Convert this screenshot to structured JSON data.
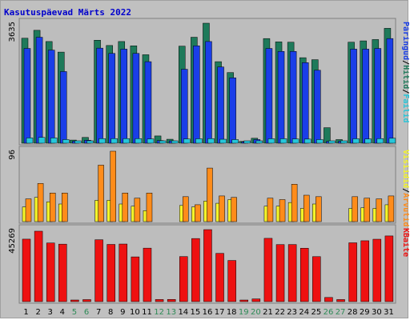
{
  "title": "Kasutuspäevad Märts 2022",
  "colors": {
    "pages": "#1a3ee8",
    "hits": "#1e7a5a",
    "files": "#26c6da",
    "visits": "#f5f52a",
    "sites": "#ff8c1a",
    "kbytes": "#ee1111",
    "weekday": "#000000",
    "weekend": "#2e8b57"
  },
  "chart_data": {
    "type": "bar",
    "categories": [
      "1",
      "2",
      "3",
      "4",
      "5",
      "6",
      "7",
      "8",
      "9",
      "10",
      "11",
      "12",
      "13",
      "14",
      "15",
      "16",
      "17",
      "18",
      "19",
      "20",
      "21",
      "22",
      "23",
      "24",
      "25",
      "26",
      "27",
      "28",
      "29",
      "30",
      "31"
    ],
    "weekend_days": [
      "5",
      "6",
      "12",
      "13",
      "19",
      "20",
      "26",
      "27"
    ],
    "panels": [
      {
        "id": "top",
        "max_label": "3635",
        "ylim": [
          0,
          3635
        ],
        "legend": [
          {
            "text": "Päringud",
            "color": "#1a3ee8"
          },
          {
            "text": "Hitid",
            "color": "#1e7a5a"
          },
          {
            "text": "Failid",
            "color": "#26c6da"
          }
        ],
        "series": [
          {
            "name": "Hitid",
            "values": [
              3180,
              3420,
              3080,
              2760,
              95,
              175,
              3120,
              2960,
              3080,
              2950,
              2680,
              220,
              120,
              2940,
              3210,
              3635,
              2470,
              2140,
              55,
              150,
              3170,
              3070,
              3060,
              2590,
              2530,
              470,
              110,
              3060,
              3100,
              3140,
              3480
            ]
          },
          {
            "name": "Päringud",
            "values": [
              2870,
              3210,
              2820,
              2170,
              60,
              90,
              2880,
              2720,
              2850,
              2720,
              2470,
              80,
              70,
              2240,
              2950,
              3080,
              2310,
              1980,
              40,
              110,
              2870,
              2780,
              2780,
              2440,
              2210,
              55,
              60,
              2850,
              2850,
              2870,
              3170
            ]
          },
          {
            "name": "Failid",
            "values": [
              160,
              175,
              160,
              110,
              20,
              30,
              140,
              140,
              140,
              140,
              130,
              30,
              25,
              130,
              135,
              140,
              120,
              110,
              15,
              25,
              135,
              135,
              130,
              125,
              110,
              20,
              20,
              135,
              130,
              140,
              150
            ]
          }
        ]
      },
      {
        "id": "middle",
        "max_label": "96",
        "ylim": [
          0,
          96
        ],
        "legend": [
          {
            "text": "Visiidid",
            "color": "#f5f52a"
          },
          {
            "text": "Arvutid",
            "color": "#ff8c1a"
          }
        ],
        "series": [
          {
            "name": "Visiidid",
            "values": [
              20,
              33,
              27,
              24,
              0,
              0,
              29,
              29,
              24,
              21,
              15,
              0,
              0,
              22,
              20,
              28,
              25,
              30,
              0,
              0,
              21,
              21,
              26,
              18,
              24,
              0,
              0,
              18,
              19,
              18,
              23
            ]
          },
          {
            "name": "Arvutid",
            "values": [
              31,
              52,
              39,
              39,
              0,
              0,
              77,
              96,
              39,
              32,
              39,
              0,
              0,
              34,
              23,
              73,
              35,
              33,
              0,
              0,
              32,
              30,
              51,
              36,
              34,
              0,
              0,
              34,
              32,
              31,
              35
            ]
          }
        ]
      },
      {
        "id": "bottom",
        "max_label": "45269",
        "ylim": [
          0,
          45269
        ],
        "legend": [
          {
            "text": "KBaite",
            "color": "#ee1111"
          }
        ],
        "series": [
          {
            "name": "KBaite",
            "values": [
              39270,
              44270,
              36860,
              36130,
              1010,
              1270,
              38900,
              35960,
              36200,
              28120,
              33620,
              1320,
              1380,
              28320,
              39660,
              45269,
              30340,
              25860,
              1000,
              1710,
              39780,
              35860,
              35890,
              33580,
              28280,
              2610,
              1300,
              36980,
              38260,
              39220,
              41290
            ]
          }
        ]
      }
    ]
  }
}
